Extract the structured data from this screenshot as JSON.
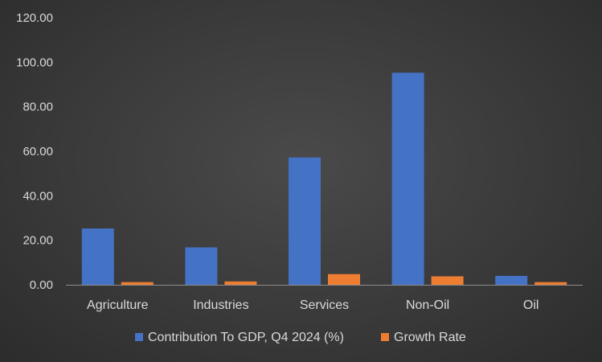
{
  "chart_data": {
    "type": "bar",
    "categories": [
      "Agriculture",
      "Industries",
      "Services",
      "Non-Oil",
      "Oil"
    ],
    "series": [
      {
        "name": "Contribution To GDP, Q4 2024 (%)",
        "values": [
          25.3,
          16.8,
          57.2,
          95.3,
          4.0
        ],
        "color": "#4472c4"
      },
      {
        "name": "Growth Rate",
        "values": [
          1.2,
          1.5,
          4.8,
          3.8,
          1.2
        ],
        "color": "#ed7d31"
      }
    ],
    "ylim": [
      0,
      120
    ],
    "yticks": [
      "0.00",
      "20.00",
      "40.00",
      "60.00",
      "80.00",
      "100.00",
      "120.00"
    ],
    "legend_position": "bottom",
    "grid": false
  }
}
